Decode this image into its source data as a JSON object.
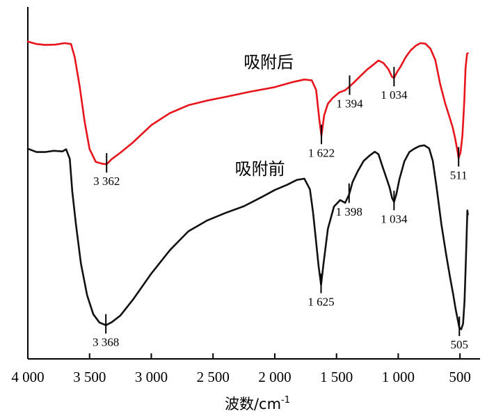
{
  "chart_data": {
    "type": "line",
    "title": "",
    "xlabel": "波数/cm",
    "xlabel_sup": "-1",
    "ylabel": "",
    "xlim": [
      4000,
      360
    ],
    "ylim": [
      0,
      100
    ],
    "x_reversed": true,
    "grid": false,
    "legend": "none",
    "x_ticks": [
      4000,
      3500,
      3000,
      2500,
      2000,
      1500,
      1000,
      500
    ],
    "x_tick_labels": [
      "4 000",
      "3 500",
      "3 000",
      "2 500",
      "2 000",
      "1 500",
      "1 000",
      "500"
    ],
    "series": [
      {
        "name": "吸附后",
        "color": "#e8141b",
        "x": [
          4000,
          3930,
          3860,
          3780,
          3700,
          3650,
          3620,
          3580,
          3540,
          3500,
          3450,
          3400,
          3362,
          3320,
          3250,
          3150,
          3000,
          2850,
          2700,
          2550,
          2400,
          2200,
          2000,
          1850,
          1760,
          1700,
          1665,
          1640,
          1622,
          1600,
          1570,
          1530,
          1480,
          1430,
          1394,
          1350,
          1300,
          1250,
          1200,
          1160,
          1120,
          1080,
          1050,
          1034,
          1010,
          980,
          940,
          900,
          860,
          820,
          780,
          740,
          700,
          660,
          620,
          590,
          560,
          540,
          520,
          511,
          495,
          480,
          465,
          455,
          443,
          436
        ],
        "values": [
          94.6,
          93.8,
          93.5,
          93.6,
          94.1,
          93.8,
          89.5,
          80,
          68.5,
          59.5,
          55.3,
          54.7,
          54.5,
          56.2,
          58.3,
          61.6,
          67.3,
          71.2,
          73.8,
          75.3,
          76.5,
          78.2,
          79.7,
          81.4,
          82.2,
          81.9,
          78.8,
          69.5,
          63.8,
          70.5,
          74.3,
          76.2,
          77.9,
          78.7,
          79.9,
          81.6,
          83.6,
          85.5,
          87.1,
          88.4,
          87.6,
          85.6,
          83.1,
          82.7,
          84.6,
          86.5,
          89.5,
          91.7,
          93.2,
          94.1,
          93.9,
          92.3,
          88.6,
          80.6,
          74.4,
          70.6,
          66.7,
          63.1,
          58.8,
          56.5,
          58.4,
          64,
          75.3,
          85.7,
          90.6,
          90.8
        ]
      },
      {
        "name": "吸附前",
        "color": "#111111",
        "x": [
          4000,
          3930,
          3860,
          3790,
          3720,
          3690,
          3660,
          3640,
          3610,
          3570,
          3520,
          3470,
          3420,
          3368,
          3320,
          3250,
          3150,
          3000,
          2850,
          2700,
          2550,
          2400,
          2250,
          2100,
          2000,
          1900,
          1820,
          1760,
          1715,
          1690,
          1665,
          1645,
          1625,
          1605,
          1570,
          1520,
          1470,
          1430,
          1398,
          1370,
          1330,
          1280,
          1230,
          1190,
          1160,
          1130,
          1100,
          1070,
          1050,
          1034,
          1015,
          990,
          950,
          910,
          870,
          830,
          790,
          750,
          720,
          690,
          650,
          610,
          580,
          555,
          535,
          520,
          505,
          490,
          475,
          463,
          452,
          440,
          436
        ],
        "values": [
          59.6,
          58.5,
          58.5,
          58.9,
          58.7,
          59.4,
          56.3,
          45.6,
          34.8,
          22.1,
          11.7,
          5.5,
          2.8,
          1.9,
          2.9,
          5.1,
          10.2,
          18.8,
          26.4,
          32.6,
          36.1,
          38.6,
          40.8,
          43.9,
          46.1,
          47.8,
          49.4,
          49.8,
          46.3,
          38.7,
          29.1,
          21.3,
          15.1,
          22,
          33.4,
          40.7,
          42.8,
          41.9,
          44.6,
          48.7,
          52.1,
          55.6,
          57.4,
          58.6,
          57.8,
          54.1,
          50.5,
          46.9,
          43.5,
          42.2,
          44.8,
          49.7,
          55.5,
          58.5,
          59.6,
          60.4,
          60.7,
          59.7,
          55.6,
          47.2,
          34.8,
          24.6,
          17.4,
          12,
          7.2,
          4.1,
          1.1,
          0.6,
          2.4,
          9.8,
          23.5,
          39.4,
          38.1
        ]
      }
    ],
    "annotations": [
      {
        "series": "吸附后",
        "x": 3362,
        "y": 54.5,
        "label": "3 362",
        "label_pos": "below"
      },
      {
        "series": "吸附后",
        "x": 1622,
        "y": 63.8,
        "label": "1 622",
        "label_pos": "below"
      },
      {
        "series": "吸附后",
        "x": 1394,
        "y": 79.9,
        "label": "1 394",
        "label_pos": "below"
      },
      {
        "series": "吸附后",
        "x": 1034,
        "y": 82.7,
        "label": "1 034",
        "label_pos": "below"
      },
      {
        "series": "吸附后",
        "x": 511,
        "y": 56.5,
        "label": "511",
        "label_pos": "below"
      },
      {
        "series": "吸附前",
        "x": 3368,
        "y": 1.9,
        "label": "3 368",
        "label_pos": "below"
      },
      {
        "series": "吸附前",
        "x": 1625,
        "y": 15.1,
        "label": "1 625",
        "label_pos": "below"
      },
      {
        "series": "吸附前",
        "x": 1398,
        "y": 44.6,
        "label": "1 398",
        "label_pos": "below"
      },
      {
        "series": "吸附前",
        "x": 1034,
        "y": 42.2,
        "label": "1 034",
        "label_pos": "below"
      },
      {
        "series": "吸附前",
        "x": 505,
        "y": 1.1,
        "label": "505",
        "label_pos": "below"
      }
    ],
    "series_labels": [
      {
        "series": "吸附后",
        "text": "吸附后"
      },
      {
        "series": "吸附前",
        "text": "吸附前"
      }
    ]
  }
}
